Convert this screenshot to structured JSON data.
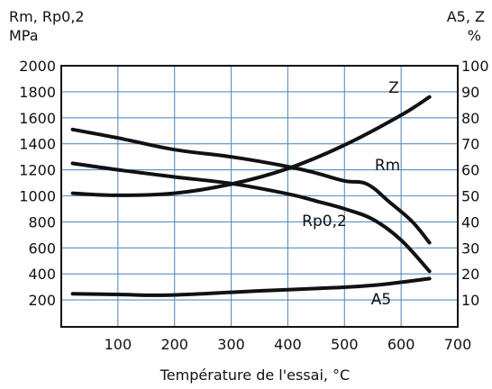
{
  "chart_data": {
    "type": "line",
    "title": "",
    "xlabel": "Température de l'essai, °C",
    "left_axis_label": [
      "Rm, Rp0,2",
      "MPa"
    ],
    "right_axis_label": [
      "A5, Z",
      "%"
    ],
    "xlim": [
      0,
      700
    ],
    "ylim_left": [
      0,
      2000
    ],
    "ylim_right": [
      0,
      100
    ],
    "x_ticks": [
      "100",
      "200",
      "300",
      "400",
      "500",
      "600",
      "700"
    ],
    "y_left_ticks": [
      "200",
      "400",
      "600",
      "800",
      "1000",
      "1200",
      "1400",
      "1600",
      "1800",
      "2000"
    ],
    "y_right_ticks": [
      "10",
      "20",
      "30",
      "40",
      "50",
      "60",
      "70",
      "80",
      "90",
      "100"
    ],
    "grid": true,
    "series": [
      {
        "name": "Rm",
        "axis": "left",
        "x": [
          20,
          100,
          200,
          300,
          400,
          450,
          500,
          540,
          580,
          620,
          650
        ],
        "y": [
          1510,
          1445,
          1355,
          1300,
          1225,
          1175,
          1115,
          1090,
          950,
          800,
          640
        ]
      },
      {
        "name": "Rp0,2",
        "axis": "left",
        "x": [
          20,
          100,
          200,
          300,
          400,
          450,
          500,
          550,
          600,
          650
        ],
        "y": [
          1250,
          1200,
          1145,
          1095,
          1015,
          960,
          900,
          820,
          660,
          420
        ]
      },
      {
        "name": "Z",
        "axis": "right",
        "x": [
          20,
          100,
          200,
          300,
          400,
          500,
          600,
          650
        ],
        "y": [
          51,
          50.2,
          51,
          54.5,
          60.5,
          69.5,
          81,
          88
        ]
      },
      {
        "name": "A5",
        "axis": "right",
        "x": [
          20,
          100,
          175,
          250,
          350,
          450,
          550,
          650
        ],
        "y": [
          12.4,
          12.1,
          11.8,
          12.4,
          13.5,
          14.4,
          15.6,
          18.2
        ]
      }
    ]
  }
}
